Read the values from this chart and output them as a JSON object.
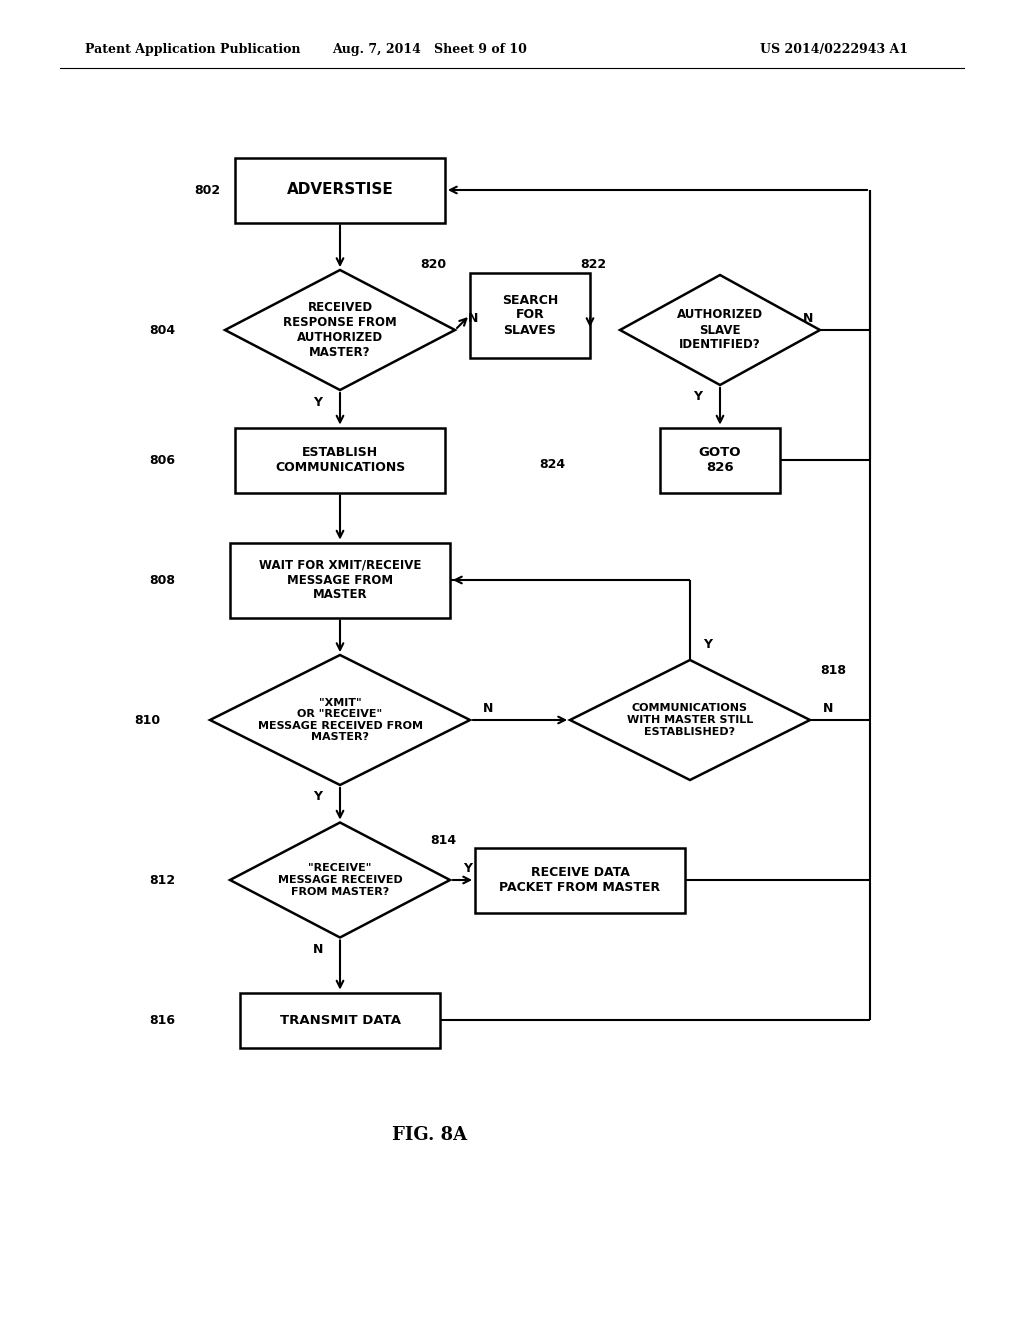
{
  "header_left": "Patent Application Publication",
  "header_mid": "Aug. 7, 2014   Sheet 9 of 10",
  "header_right": "US 2014/0222943 A1",
  "figure_label": "FIG. 8A",
  "background": "#ffffff",
  "lw": 1.8
}
